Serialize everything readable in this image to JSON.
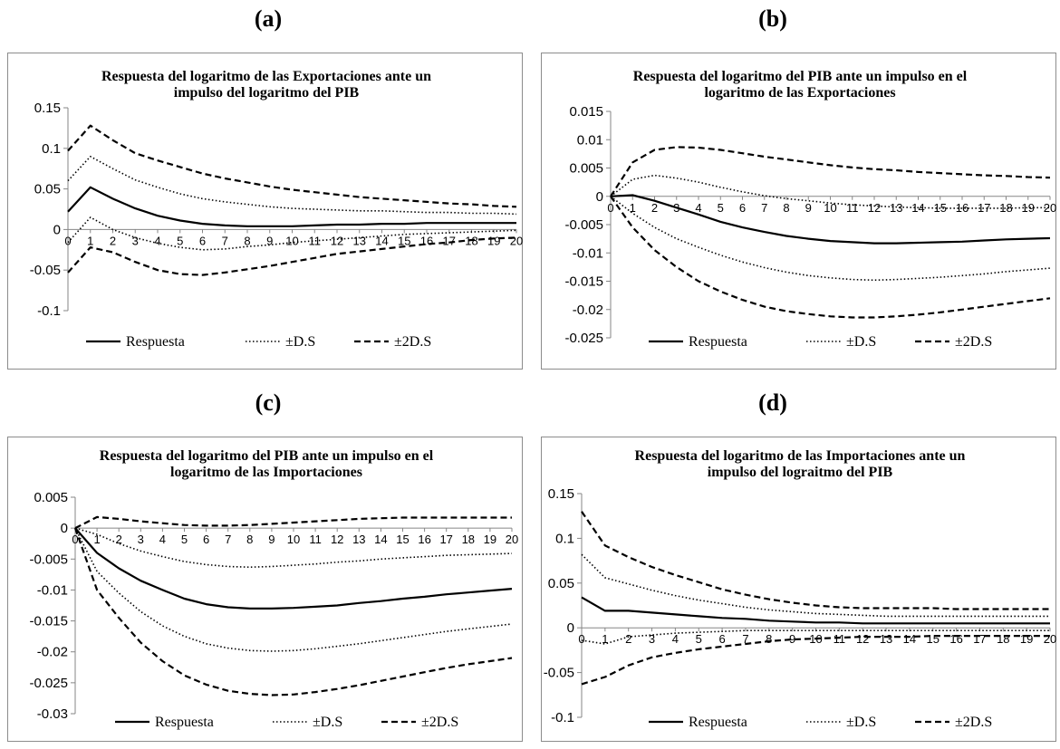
{
  "chart_data": [
    {
      "panel_label": "(a)",
      "type": "line",
      "title_lines": [
        "Respuesta del logaritmo de las Exportaciones ante un",
        "impulso del logaritmo del PIB"
      ],
      "x": [
        0,
        1,
        2,
        3,
        4,
        5,
        6,
        7,
        8,
        9,
        10,
        11,
        12,
        13,
        14,
        15,
        16,
        17,
        18,
        19,
        20
      ],
      "x_ticks": [
        "0",
        "1",
        "2",
        "3",
        "4",
        "5",
        "6",
        "7",
        "8",
        "9",
        "10",
        "11",
        "12",
        "13",
        "14",
        "15",
        "16",
        "17",
        "18",
        "19",
        "20"
      ],
      "y_ticks": [
        "0.15",
        "0.1",
        "0.05",
        "0",
        "-0.05",
        "-0.1"
      ],
      "ylim": [
        -0.1,
        0.15
      ],
      "grid": false,
      "legend_position": "bottom",
      "series": [
        {
          "name": "Respuesta",
          "style": "solid",
          "values": [
            0.022,
            0.052,
            0.038,
            0.026,
            0.017,
            0.011,
            0.007,
            0.005,
            0.004,
            0.004,
            0.004,
            0.005,
            0.006,
            0.006,
            0.007,
            0.007,
            0.008,
            0.008,
            0.008,
            0.008,
            0.008
          ]
        },
        {
          "name": "±D.S",
          "style": "dotted",
          "values": [
            0.06,
            0.09,
            0.075,
            0.061,
            0.052,
            0.044,
            0.038,
            0.034,
            0.031,
            0.028,
            0.026,
            0.025,
            0.024,
            0.023,
            0.023,
            0.022,
            0.021,
            0.021,
            0.02,
            0.02,
            0.019
          ]
        },
        {
          "name": "",
          "style": "dotted",
          "values": [
            -0.016,
            0.015,
            0.0,
            -0.01,
            -0.017,
            -0.022,
            -0.025,
            -0.024,
            -0.021,
            -0.019,
            -0.016,
            -0.014,
            -0.012,
            -0.01,
            -0.008,
            -0.006,
            -0.005,
            -0.004,
            -0.003,
            -0.002,
            -0.001
          ]
        },
        {
          "name": "±2D.S",
          "style": "dashed",
          "values": [
            0.097,
            0.128,
            0.11,
            0.094,
            0.085,
            0.077,
            0.069,
            0.063,
            0.058,
            0.053,
            0.049,
            0.046,
            0.043,
            0.04,
            0.038,
            0.036,
            0.034,
            0.032,
            0.031,
            0.029,
            0.028
          ]
        },
        {
          "name": "",
          "style": "dashed",
          "values": [
            -0.053,
            -0.022,
            -0.028,
            -0.04,
            -0.05,
            -0.055,
            -0.056,
            -0.053,
            -0.049,
            -0.045,
            -0.04,
            -0.035,
            -0.03,
            -0.027,
            -0.024,
            -0.021,
            -0.018,
            -0.016,
            -0.013,
            -0.011,
            -0.01
          ]
        }
      ]
    },
    {
      "panel_label": "(b)",
      "type": "line",
      "title_lines": [
        "Respuesta del logaritmo del PIB ante un impulso en el",
        "logaritmo de las Exportaciones"
      ],
      "x": [
        0,
        1,
        2,
        3,
        4,
        5,
        6,
        7,
        8,
        9,
        10,
        11,
        12,
        13,
        14,
        15,
        16,
        17,
        18,
        19,
        20
      ],
      "x_ticks": [
        "0",
        "1",
        "2",
        "3",
        "4",
        "5",
        "6",
        "7",
        "8",
        "9",
        "10",
        "11",
        "12",
        "13",
        "14",
        "15",
        "16",
        "17",
        "18",
        "19",
        "20"
      ],
      "y_ticks": [
        "0.015",
        "0.01",
        "0.005",
        "0",
        "-0.005",
        "-0.01",
        "-0.015",
        "-0.02",
        "-0.025"
      ],
      "ylim": [
        -0.025,
        0.015
      ],
      "grid": false,
      "legend_position": "bottom",
      "series": [
        {
          "name": "Respuesta",
          "style": "solid",
          "values": [
            0.0,
            0.0002,
            -0.0008,
            -0.002,
            -0.0032,
            -0.0045,
            -0.0055,
            -0.0063,
            -0.007,
            -0.0075,
            -0.0079,
            -0.0081,
            -0.0083,
            -0.0083,
            -0.0082,
            -0.0081,
            -0.008,
            -0.0078,
            -0.0076,
            -0.0075,
            -0.0074
          ]
        },
        {
          "name": "±D.S",
          "style": "dotted",
          "values": [
            0.0,
            0.003,
            0.0037,
            0.0032,
            0.0025,
            0.0016,
            0.0008,
            0.0001,
            -0.0004,
            -0.0008,
            -0.0012,
            -0.0015,
            -0.0017,
            -0.0019,
            -0.002,
            -0.0021,
            -0.0021,
            -0.0021,
            -0.0021,
            -0.002,
            -0.002
          ]
        },
        {
          "name": "",
          "style": "dotted",
          "values": [
            0.0,
            -0.003,
            -0.0055,
            -0.0075,
            -0.009,
            -0.0104,
            -0.0116,
            -0.0126,
            -0.0134,
            -0.014,
            -0.0144,
            -0.0147,
            -0.0148,
            -0.0147,
            -0.0145,
            -0.0143,
            -0.014,
            -0.0137,
            -0.0133,
            -0.013,
            -0.0127
          ]
        },
        {
          "name": "±2D.S",
          "style": "dashed",
          "values": [
            0.0,
            0.006,
            0.0082,
            0.0087,
            0.0086,
            0.0082,
            0.0076,
            0.007,
            0.0065,
            0.006,
            0.0055,
            0.0051,
            0.0048,
            0.0046,
            0.0043,
            0.0041,
            0.0039,
            0.0037,
            0.0036,
            0.0034,
            0.0033
          ]
        },
        {
          "name": "",
          "style": "dashed",
          "values": [
            0.0,
            -0.0055,
            -0.0095,
            -0.0125,
            -0.015,
            -0.0168,
            -0.0183,
            -0.0195,
            -0.0203,
            -0.0208,
            -0.0212,
            -0.0214,
            -0.0214,
            -0.0212,
            -0.0209,
            -0.0205,
            -0.02,
            -0.0195,
            -0.019,
            -0.0185,
            -0.018
          ]
        }
      ]
    },
    {
      "panel_label": "(c)",
      "type": "line",
      "title_lines": [
        "Respuesta del logaritmo del PIB ante un impulso en el",
        "logaritmo de las Importaciones"
      ],
      "x": [
        0,
        1,
        2,
        3,
        4,
        5,
        6,
        7,
        8,
        9,
        10,
        11,
        12,
        13,
        14,
        15,
        16,
        17,
        18,
        19,
        20
      ],
      "x_ticks": [
        "0",
        "1",
        "2",
        "3",
        "4",
        "5",
        "6",
        "7",
        "8",
        "9",
        "10",
        "11",
        "12",
        "13",
        "14",
        "15",
        "16",
        "17",
        "18",
        "19",
        "20"
      ],
      "y_ticks": [
        "0.005",
        "0",
        "-0.005",
        "-0.01",
        "-0.015",
        "-0.02",
        "-0.025",
        "-0.03"
      ],
      "ylim": [
        -0.03,
        0.005
      ],
      "grid": false,
      "legend_position": "bottom",
      "series": [
        {
          "name": "Respuesta",
          "style": "solid",
          "values": [
            0.0,
            -0.004,
            -0.0065,
            -0.0085,
            -0.01,
            -0.0114,
            -0.0123,
            -0.0128,
            -0.013,
            -0.013,
            -0.0129,
            -0.0127,
            -0.0125,
            -0.0121,
            -0.0118,
            -0.0114,
            -0.0111,
            -0.0107,
            -0.0104,
            -0.0101,
            -0.0098
          ]
        },
        {
          "name": "±D.S",
          "style": "dotted",
          "values": [
            0.0,
            -0.001,
            -0.0025,
            -0.0037,
            -0.0046,
            -0.0054,
            -0.0059,
            -0.0062,
            -0.0063,
            -0.0062,
            -0.006,
            -0.0058,
            -0.0055,
            -0.0053,
            -0.005,
            -0.0048,
            -0.0046,
            -0.0044,
            -0.0043,
            -0.0042,
            -0.0041
          ]
        },
        {
          "name": "",
          "style": "dotted",
          "values": [
            0.0,
            -0.007,
            -0.0105,
            -0.0135,
            -0.0158,
            -0.0175,
            -0.0187,
            -0.0194,
            -0.0198,
            -0.0199,
            -0.0198,
            -0.0195,
            -0.0191,
            -0.0187,
            -0.0182,
            -0.0177,
            -0.0172,
            -0.0167,
            -0.0163,
            -0.0159,
            -0.0155
          ]
        },
        {
          "name": "±2D.S",
          "style": "dashed",
          "values": [
            0.0,
            0.0018,
            0.0015,
            0.0011,
            0.0008,
            0.0005,
            0.0004,
            0.0004,
            0.0005,
            0.0007,
            0.0009,
            0.0011,
            0.0013,
            0.0015,
            0.0016,
            0.0017,
            0.0017,
            0.0017,
            0.0017,
            0.0017,
            0.0017
          ]
        },
        {
          "name": "",
          "style": "dashed",
          "values": [
            0.0,
            -0.01,
            -0.0145,
            -0.0185,
            -0.0215,
            -0.0238,
            -0.0253,
            -0.0263,
            -0.0268,
            -0.027,
            -0.0269,
            -0.0265,
            -0.026,
            -0.0254,
            -0.0247,
            -0.024,
            -0.0233,
            -0.0226,
            -0.022,
            -0.0215,
            -0.021
          ]
        }
      ]
    },
    {
      "panel_label": "(d)",
      "type": "line",
      "title_lines": [
        "Respuesta del logaritmo de las Importaciones ante un",
        "impulso del lograitmo del PIB"
      ],
      "x": [
        0,
        1,
        2,
        3,
        4,
        5,
        6,
        7,
        8,
        9,
        10,
        11,
        12,
        13,
        14,
        15,
        16,
        17,
        18,
        19,
        20
      ],
      "x_ticks": [
        "0",
        "1",
        "2",
        "3",
        "4",
        "5",
        "6",
        "7",
        "8",
        "9",
        "10",
        "11",
        "12",
        "13",
        "14",
        "15",
        "16",
        "17",
        "18",
        "19",
        "20"
      ],
      "y_ticks": [
        "0.15",
        "0.1",
        "0.05",
        "0",
        "-0.05",
        "-0.1"
      ],
      "ylim": [
        -0.1,
        0.15
      ],
      "grid": false,
      "legend_position": "bottom",
      "series": [
        {
          "name": "Respuesta",
          "style": "solid",
          "values": [
            0.034,
            0.019,
            0.019,
            0.017,
            0.015,
            0.013,
            0.011,
            0.01,
            0.008,
            0.007,
            0.006,
            0.006,
            0.005,
            0.005,
            0.005,
            0.005,
            0.005,
            0.005,
            0.005,
            0.005,
            0.005
          ]
        },
        {
          "name": "±D.S",
          "style": "dotted",
          "values": [
            0.082,
            0.056,
            0.049,
            0.042,
            0.036,
            0.031,
            0.027,
            0.023,
            0.02,
            0.018,
            0.016,
            0.015,
            0.014,
            0.013,
            0.013,
            0.013,
            0.013,
            0.013,
            0.013,
            0.013,
            0.013
          ]
        },
        {
          "name": "",
          "style": "dotted",
          "values": [
            -0.014,
            -0.018,
            -0.01,
            -0.008,
            -0.006,
            -0.005,
            -0.004,
            -0.003,
            -0.003,
            -0.003,
            -0.003,
            -0.003,
            -0.003,
            -0.003,
            -0.003,
            -0.003,
            -0.003,
            -0.003,
            -0.003,
            -0.003,
            -0.003
          ]
        },
        {
          "name": "±2D.S",
          "style": "dashed",
          "values": [
            0.13,
            0.092,
            0.079,
            0.068,
            0.059,
            0.051,
            0.043,
            0.037,
            0.032,
            0.028,
            0.025,
            0.023,
            0.022,
            0.022,
            0.022,
            0.022,
            0.021,
            0.021,
            0.021,
            0.021,
            0.021
          ]
        },
        {
          "name": "",
          "style": "dashed",
          "values": [
            -0.063,
            -0.055,
            -0.042,
            -0.033,
            -0.028,
            -0.024,
            -0.021,
            -0.018,
            -0.015,
            -0.013,
            -0.012,
            -0.011,
            -0.01,
            -0.01,
            -0.01,
            -0.009,
            -0.009,
            -0.009,
            -0.009,
            -0.009,
            -0.009
          ]
        }
      ]
    }
  ]
}
